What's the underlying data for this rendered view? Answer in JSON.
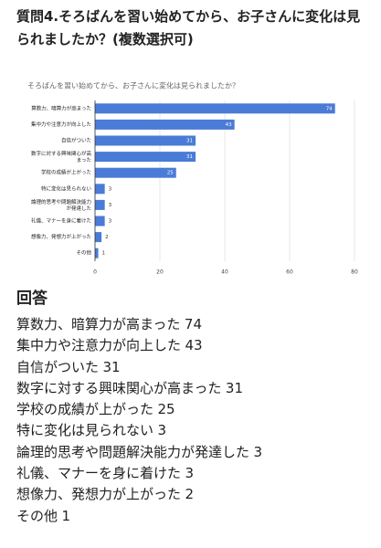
{
  "heading": "質問4.そろばんを習い始めてから、お子さんに変化は見られましたか？(複数選択可)",
  "chart_data": {
    "type": "bar",
    "orientation": "horizontal",
    "title": "そろばんを習い始めてから、お子さんに変化は見られましたか？",
    "categories": [
      "算数力、暗算力が高まった",
      "集中力や注意力が向上した",
      "自信がついた",
      "数字に対する興味関心が高まった",
      "学校の成績が上がった",
      "特に変化は見られない",
      "論理的思考や問題解決能力が発達した",
      "礼儀、マナーを身に着けた",
      "想像力、発想力が上がった",
      "その他"
    ],
    "values": [
      74,
      43,
      31,
      31,
      25,
      3,
      3,
      3,
      2,
      1
    ],
    "color": "#4a7bd6",
    "xlim": [
      0,
      80
    ],
    "xticks": [
      0,
      20,
      40,
      60,
      80
    ],
    "grid": true
  },
  "answers": {
    "title": "回答"
  }
}
